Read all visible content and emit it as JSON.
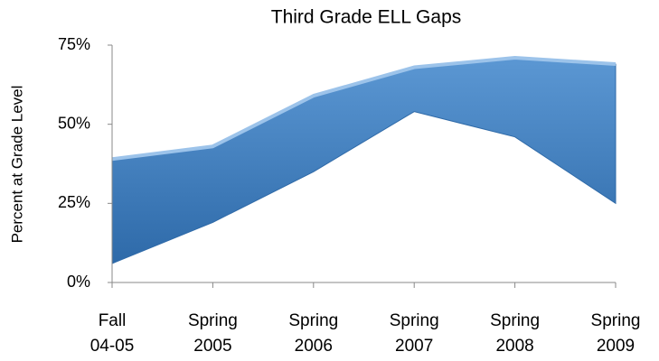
{
  "chart_data": {
    "type": "band",
    "title": "Third Grade ELL Gaps",
    "y_label": "Percent at Grade Level",
    "categories": [
      "Fall 04-05",
      "Spring 2005",
      "Spring 2006",
      "Spring 2007",
      "Spring 2008",
      "Spring 2009"
    ],
    "series": [
      {
        "color": "#3d7cc0",
        "values": [
          39,
          43,
          59,
          68,
          71,
          69
        ]
      },
      {
        "color": "#2f6aa8",
        "values": [
          6,
          19,
          35,
          54,
          46,
          25
        ]
      }
    ],
    "ylim": [
      0,
      75
    ],
    "yticks": [
      {
        "value": 0,
        "label": "0%"
      },
      {
        "value": 25,
        "label": "25%"
      },
      {
        "value": 50,
        "label": "50%"
      },
      {
        "value": 75,
        "label": "75%"
      }
    ],
    "grid": false
  }
}
